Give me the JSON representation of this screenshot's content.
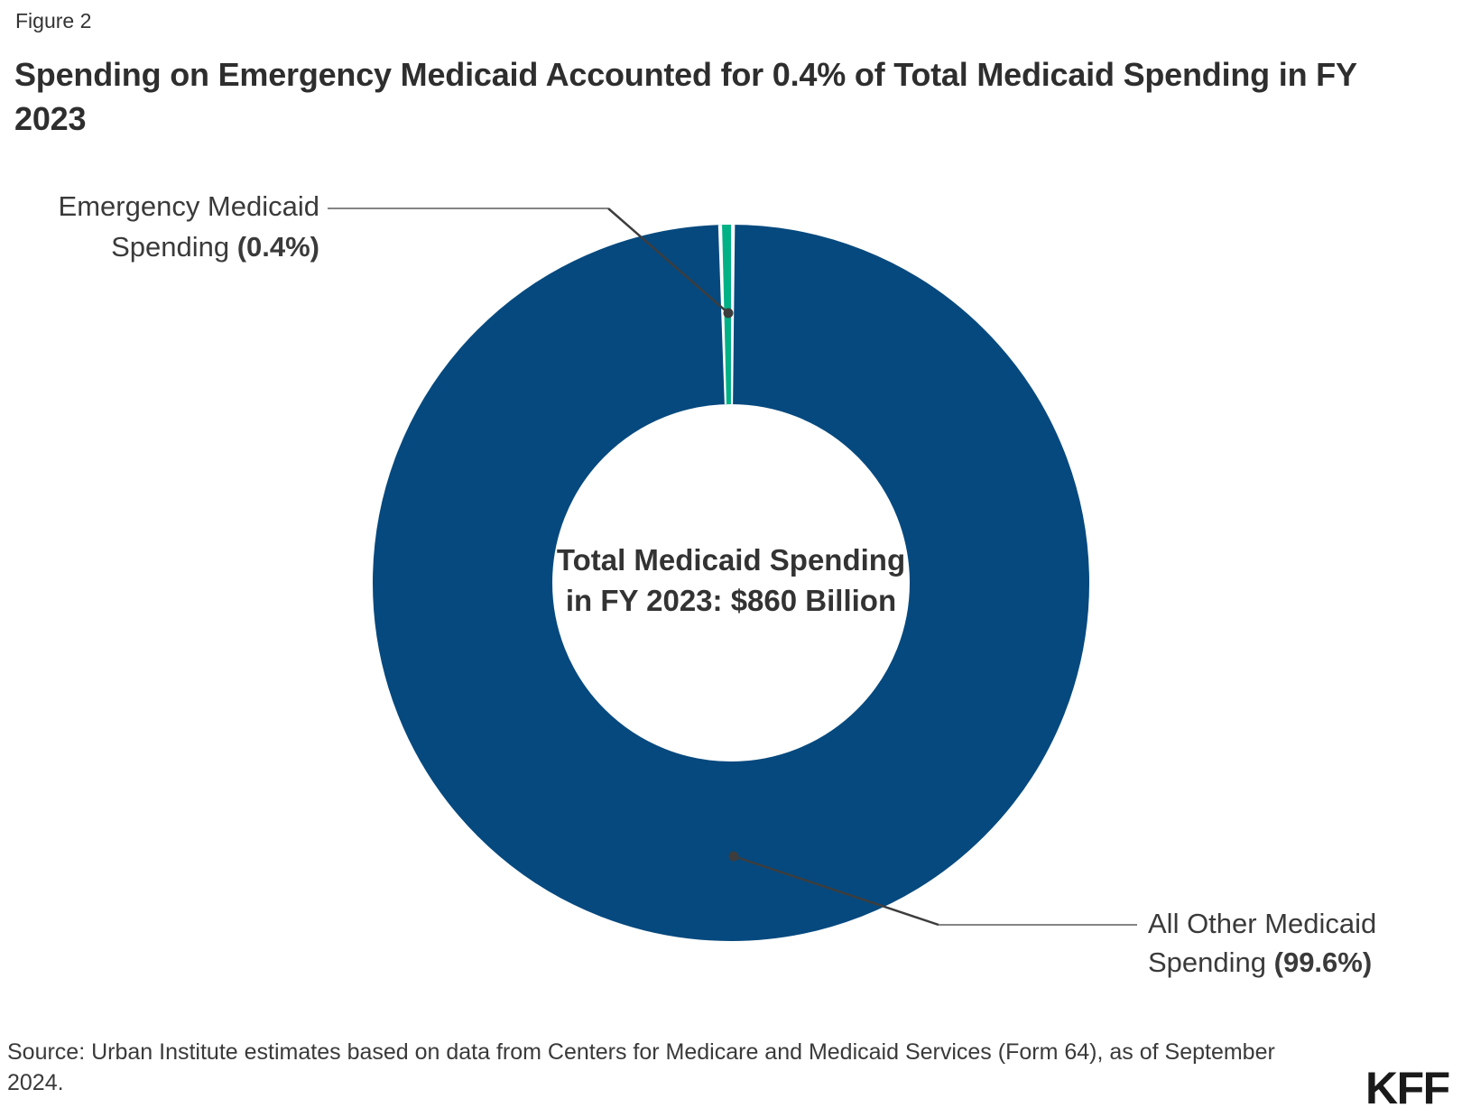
{
  "figure_label": "Figure 2",
  "title": "Spending on Emergency Medicaid Accounted for 0.4% of Total Medicaid Spending in FY 2023",
  "chart_data": {
    "type": "pie",
    "subtype": "donut",
    "title": "Spending on Emergency Medicaid Accounted for 0.4% of Total Medicaid Spending in FY 2023",
    "segments": [
      {
        "label": "All Other Medicaid Spending",
        "pct": 99.6,
        "color": "#05497E"
      },
      {
        "label": "Emergency Medicaid Spending",
        "pct": 0.4,
        "color": "#00B185"
      }
    ],
    "center_label": {
      "line1": "Total Medicaid Spending",
      "line2": "in FY 2023: $860 Billion"
    },
    "total_spending": "$860 Billion",
    "donut_hole_ratio": 0.5,
    "legend_position": "callouts-with-leader-lines"
  },
  "annotations": {
    "emergency": {
      "line1": "Emergency Medicaid",
      "line2_prefix": "Spending ",
      "line2_bold": "(0.4%)"
    },
    "all_other": {
      "line1": "All Other Medicaid",
      "line2_prefix": "Spending ",
      "line2_bold": "(99.6%)"
    }
  },
  "source": "Source: Urban Institute estimates based on data from Centers for Medicare and Medicaid Services (Form 64), as of September 2024.",
  "logo_text": "KFF",
  "colors": {
    "all_other_blue": "#05497E",
    "emergency_green": "#00B185",
    "leader_gray": "#858585",
    "leader_dark": "#3D3D3D",
    "text_dark": "#333333"
  }
}
